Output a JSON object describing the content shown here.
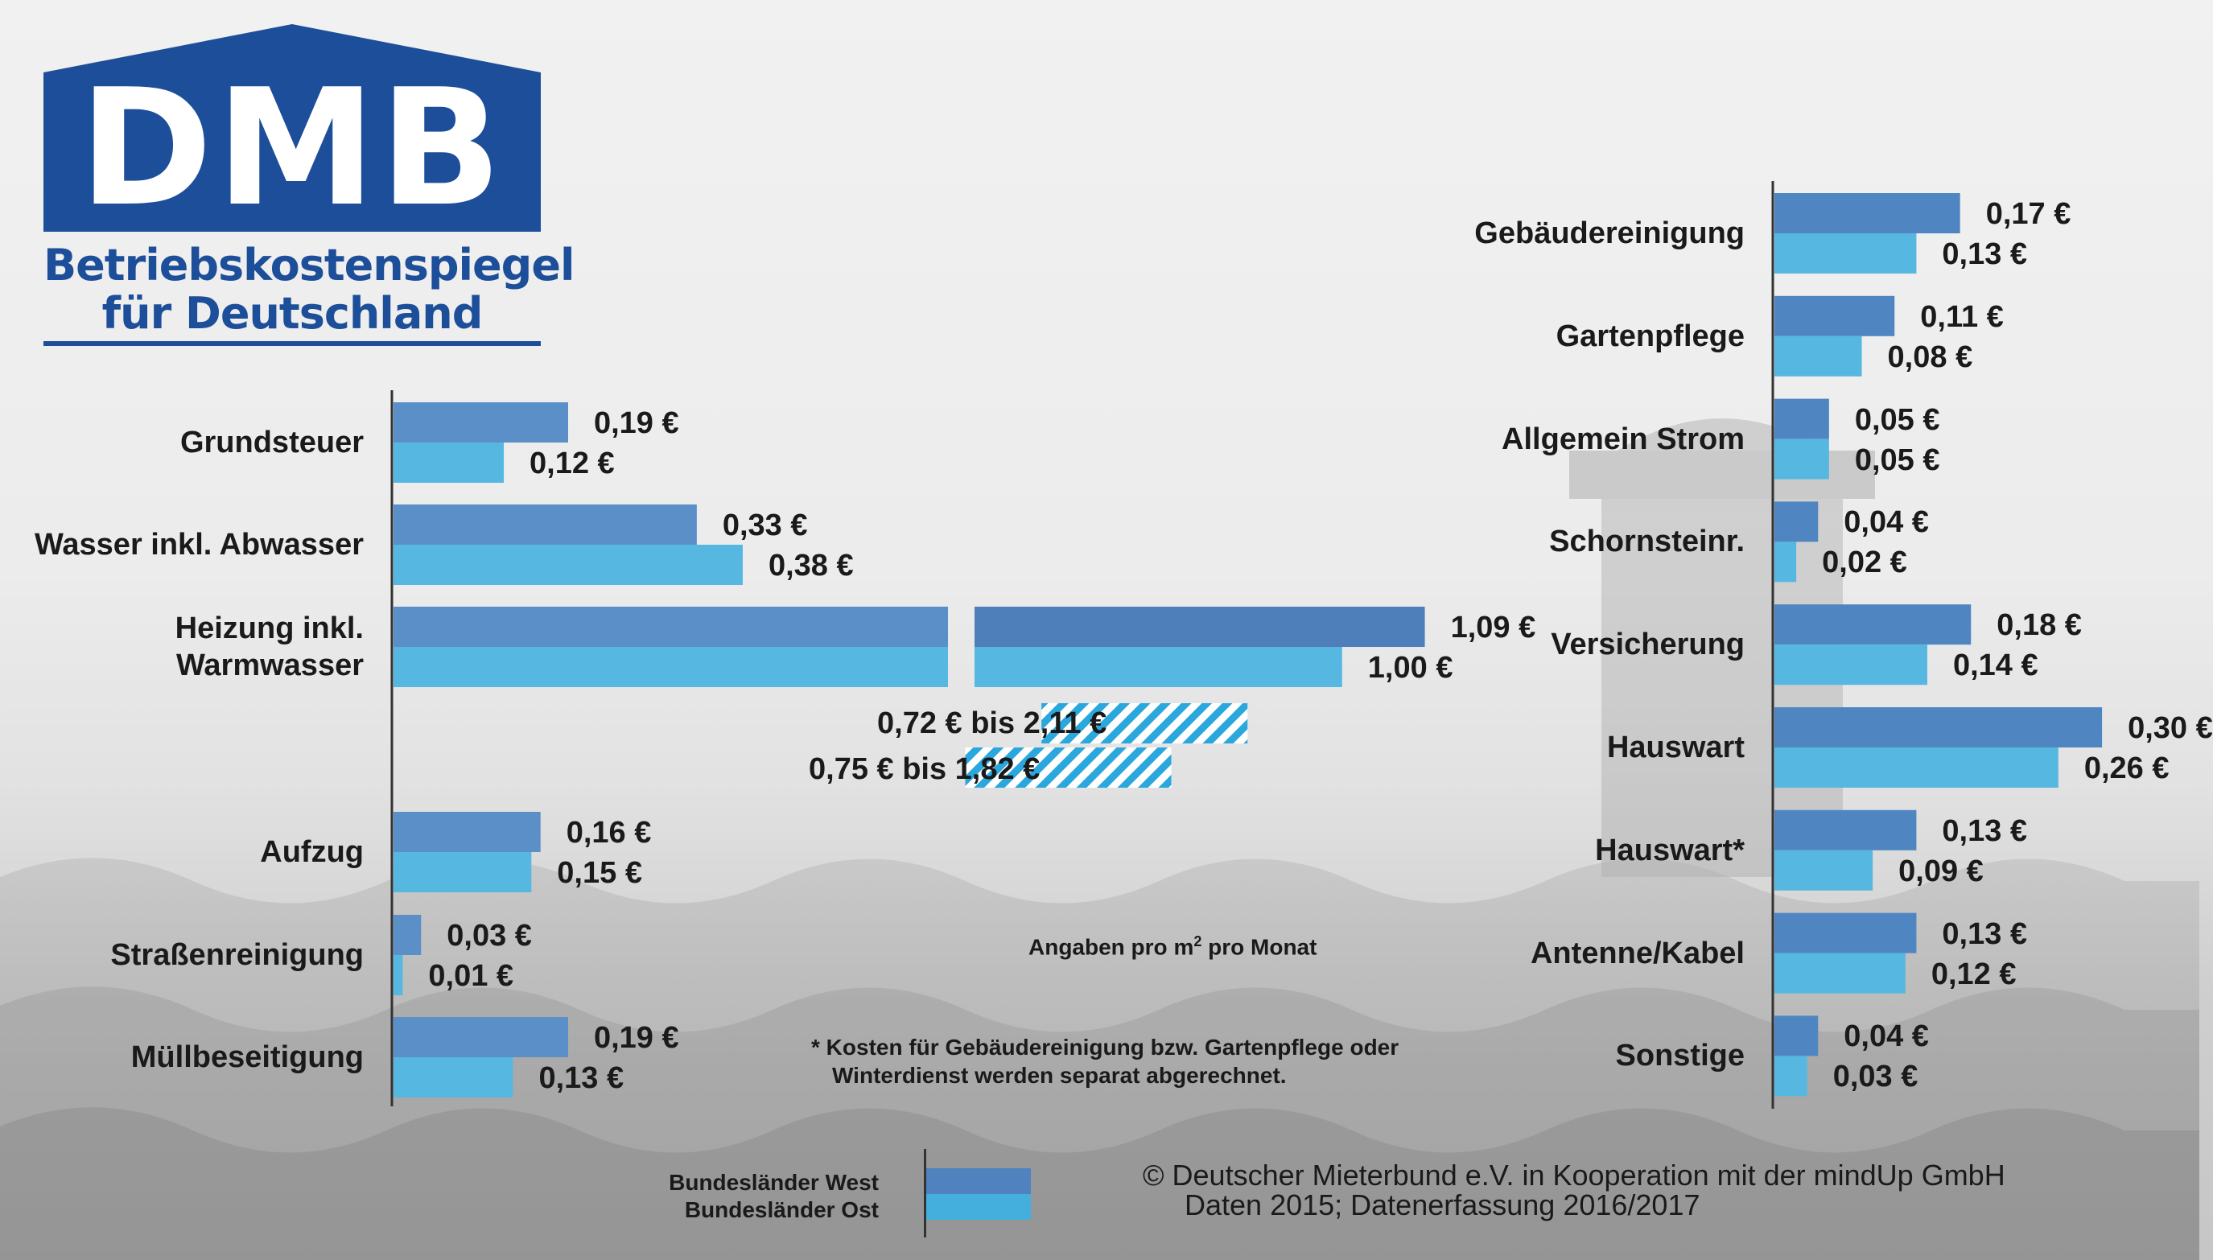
{
  "logo": {
    "text": "DMB",
    "subtitle_line1": "Betriebskostenspiegel",
    "subtitle_line2": "für Deutschland",
    "color": "#1d4e9a"
  },
  "colors": {
    "west": "#5b8fc8",
    "ost": "#56b8e0",
    "hatch": "#2aa7dc"
  },
  "chart_data": [
    {
      "type": "bar",
      "orientation": "horizontal",
      "categories": [
        "Grundsteuer",
        "Wasser inkl. Abwasser",
        "Heizung inkl. Warmwasser",
        "Aufzug",
        "Straßenreinigung",
        "Müllbeseitigung"
      ],
      "category_lines": [
        [
          "Grundsteuer"
        ],
        [
          "Wasser inkl. Abwasser"
        ],
        [
          "Heizung inkl.",
          "Warmwasser"
        ],
        [
          "Aufzug"
        ],
        [
          "Straßenreinigung"
        ],
        [
          "Müllbeseitigung"
        ]
      ],
      "series": [
        {
          "name": "Bundesländer West",
          "values": [
            0.19,
            0.33,
            1.09,
            0.16,
            0.03,
            0.19
          ],
          "labels": [
            "0,19 €",
            "0,33 €",
            "1,09 €",
            "0,16 €",
            "0,03 €",
            "0,19 €"
          ]
        },
        {
          "name": "Bundesländer Ost",
          "values": [
            0.12,
            0.38,
            1.0,
            0.15,
            0.01,
            0.13
          ],
          "labels": [
            "0,12 €",
            "0,38 €",
            "1,00 €",
            "0,15 €",
            "0,01 €",
            "0,13 €"
          ]
        }
      ],
      "axis_break": {
        "category": "Heizung inkl. Warmwasser"
      },
      "ranges": [
        {
          "series": "Bundesländer West",
          "min": 0.72,
          "max": 2.11,
          "label": "0,72 € bis 2,11 €"
        },
        {
          "series": "Bundesländer Ost",
          "min": 0.75,
          "max": 1.82,
          "label": "0,75 € bis 1,82 €"
        }
      ],
      "grid": false
    },
    {
      "type": "bar",
      "orientation": "horizontal",
      "categories": [
        "Gebäudereinigung",
        "Gartenpflege",
        "Allgemein Strom",
        "Schornsteinr.",
        "Versicherung",
        "Hauswart",
        "Hauswart*",
        "Antenne/Kabel",
        "Sonstige"
      ],
      "category_lines": [
        [
          "Gebäudereinigung"
        ],
        [
          "Gartenpflege"
        ],
        [
          "Allgemein Strom"
        ],
        [
          "Schornsteinr."
        ],
        [
          "Versicherung"
        ],
        [
          "Hauswart"
        ],
        [
          "Hauswart*"
        ],
        [
          "Antenne/Kabel"
        ],
        [
          "Sonstige"
        ]
      ],
      "series": [
        {
          "name": "Bundesländer West",
          "values": [
            0.17,
            0.11,
            0.05,
            0.04,
            0.18,
            0.3,
            0.13,
            0.13,
            0.04
          ],
          "labels": [
            "0,17 €",
            "0,11 €",
            "0,05 €",
            "0,04 €",
            "0,18 €",
            "0,30 €",
            "0,13 €",
            "0,13 €",
            "0,04 €"
          ]
        },
        {
          "name": "Bundesländer Ost",
          "values": [
            0.13,
            0.08,
            0.05,
            0.02,
            0.14,
            0.26,
            0.09,
            0.12,
            0.03
          ],
          "labels": [
            "0,13 €",
            "0,08 €",
            "0,05 €",
            "0,02 €",
            "0,14 €",
            "0,26 €",
            "0,09 €",
            "0,12 €",
            "0,03 €"
          ]
        }
      ],
      "grid": false
    }
  ],
  "legend": {
    "west": "Bundesländer West",
    "ost": "Bundesländer Ost"
  },
  "notes": {
    "unit_prefix": "Angaben pro m",
    "unit_sup": "2",
    "unit_suffix": " pro Monat",
    "footnote_line1": "* Kosten für Gebäudereinigung bzw. Gartenpflege oder",
    "footnote_line2": "Winterdienst werden separat abgerechnet."
  },
  "copyright": {
    "line1": "©  Deutscher Mieterbund e.V. in Kooperation mit der mindUp GmbH",
    "line2": "Daten 2015; Datenerfassung 2016/2017"
  }
}
